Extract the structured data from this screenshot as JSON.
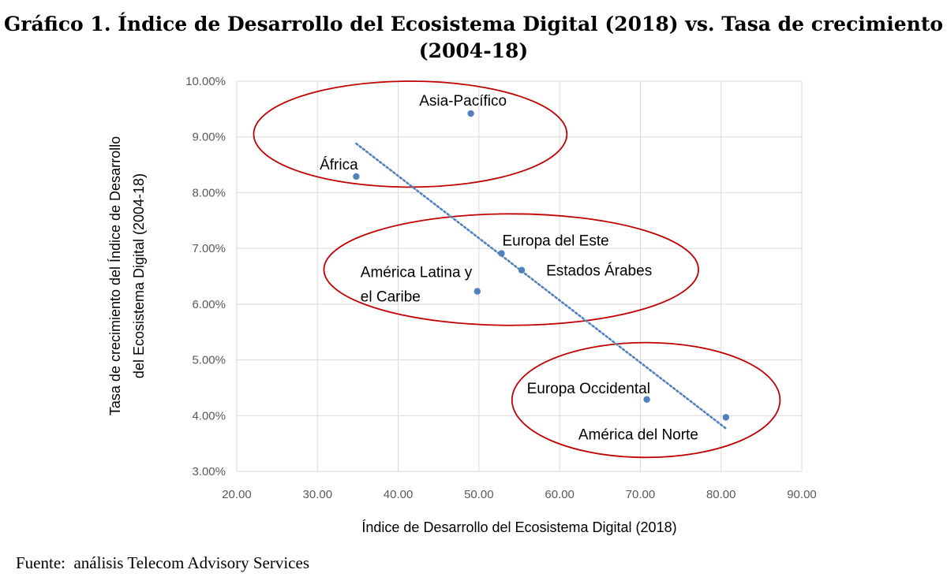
{
  "title_line1": "Gráfico 1. Índice de Desarrollo del Ecosistema Digital (2018) vs. Tasa de crecimiento",
  "title_line2": "(2004-18)",
  "source": "Fuente:  análisis Telecom Advisory Services",
  "chart_data": {
    "type": "scatter",
    "title": "Gráfico 1. Índice de Desarrollo del Ecosistema Digital (2018) vs. Tasa de crecimiento (2004-18)",
    "xlabel": "Índice de Desarrollo del Ecosistema Digital (2018)",
    "ylabel_lines": [
      "Tasa de crecimiento del Índice de Desarrollo",
      "del Ecosistema Digital (2004-18)"
    ],
    "xlim": [
      20,
      90
    ],
    "ylim": [
      3,
      10
    ],
    "x_ticks": [
      20,
      30,
      40,
      50,
      60,
      70,
      80,
      90
    ],
    "x_tick_labels": [
      "20.00",
      "30.00",
      "40.00",
      "50.00",
      "60.00",
      "70.00",
      "80.00",
      "90.00"
    ],
    "y_ticks": [
      3,
      4,
      5,
      6,
      7,
      8,
      9,
      10
    ],
    "y_tick_labels": [
      "3.00%",
      "4.00%",
      "5.00%",
      "6.00%",
      "7.00%",
      "8.00%",
      "9.00%",
      "10.00%"
    ],
    "grid": "vertical and horizontal",
    "marker_color": "#4f81bd",
    "trendline_color": "#4f81bd",
    "ellipse_color": "#c00000",
    "points": [
      {
        "label": "Asia-Pacífico",
        "x": 49.0,
        "y": 9.42
      },
      {
        "label": "África",
        "x": 34.8,
        "y": 8.29
      },
      {
        "label": "Europa del Este",
        "x": 52.8,
        "y": 6.91
      },
      {
        "label": "Estados Árabes",
        "x": 55.3,
        "y": 6.61
      },
      {
        "label_lines": [
          "América Latina y",
          "el Caribe"
        ],
        "x": 49.8,
        "y": 6.23
      },
      {
        "label": "Europa Occidental",
        "x": 70.8,
        "y": 4.29
      },
      {
        "label": "América del Norte",
        "x": 80.6,
        "y": 3.97
      }
    ],
    "trendline": {
      "type": "linear",
      "from": {
        "x": 34.8,
        "y": 8.88
      },
      "to": {
        "x": 80.6,
        "y": 3.77
      }
    },
    "groups": [
      [
        "Asia-Pacífico",
        "África"
      ],
      [
        "Europa del Este",
        "Estados Árabes",
        "América Latina y el Caribe"
      ],
      [
        "Europa Occidental",
        "América del Norte"
      ]
    ]
  }
}
